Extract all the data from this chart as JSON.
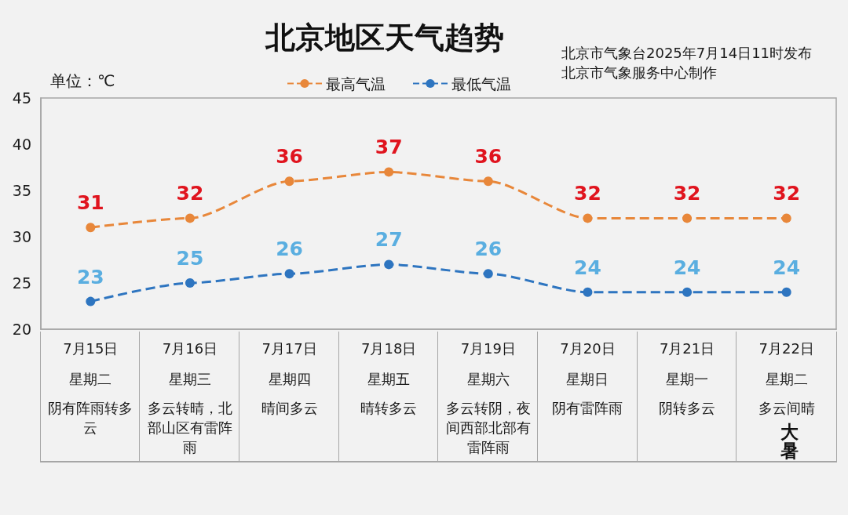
{
  "chart_data": {
    "type": "line",
    "title": "北京地区天气趋势",
    "ylabel": "单位：℃",
    "annotations": [
      "北京市气象台2025年7月14日11时发布",
      "北京市气象服务中心制作",
      "星期二",
      "星期三",
      "星期四",
      "星期五",
      "星期六",
      "星期日",
      "星期一",
      "星期二",
      "阴有阵雨转多云",
      "多云转晴，北部山区有雷阵雨",
      "晴间多云",
      "晴转多云",
      "多云转阴，夜间西部北部有雷阵雨",
      "阴有雷阵雨",
      "阴转多云",
      "多云间晴",
      "大暑"
    ],
    "categories": [
      "7月15日",
      "7月16日",
      "7月17日",
      "7月18日",
      "7月19日",
      "7月20日",
      "7月21日",
      "7月22日"
    ],
    "series": [
      {
        "name": "最高气温",
        "color": "#e8873a",
        "values": [
          31,
          32,
          36,
          37,
          36,
          32,
          32,
          32
        ]
      },
      {
        "name": "最低气温",
        "color": "#2e75c0",
        "values": [
          23,
          25,
          26,
          27,
          26,
          24,
          24,
          24
        ]
      }
    ],
    "ylim": [
      20,
      45
    ],
    "yticks": [
      20,
      25,
      30,
      35,
      40,
      45
    ],
    "legend": "top",
    "marker": "circle",
    "line_style": "dashed",
    "data_labels": true
  }
}
